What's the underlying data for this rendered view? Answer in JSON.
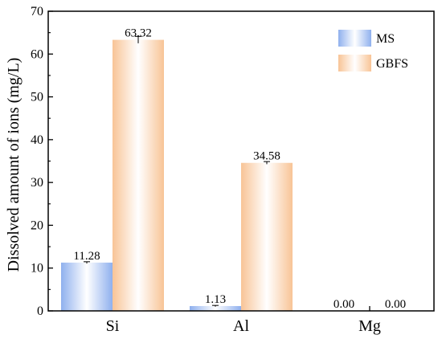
{
  "chart_data": {
    "type": "bar",
    "categories": [
      "Si",
      "Al",
      "Mg"
    ],
    "series": [
      {
        "name": "MS",
        "values": [
          11.28,
          1.13,
          0.0
        ],
        "labels": [
          "11.28",
          "1.13",
          "0.00"
        ],
        "errors": [
          0.2,
          0.15,
          0
        ],
        "color": "#a9c4f2"
      },
      {
        "name": "GBFS",
        "values": [
          63.32,
          34.58,
          0.0
        ],
        "labels": [
          "63.32",
          "34.58",
          "0.00"
        ],
        "errors": [
          0.8,
          0.3,
          0
        ],
        "color": "#f9c9a0"
      }
    ],
    "ylabel": "Dissolved amount of ions (mg/L)",
    "ylim": [
      0,
      70
    ],
    "yticks": [
      "0",
      "10",
      "20",
      "30",
      "40",
      "50",
      "60",
      "70"
    ],
    "legend_position": "top-right",
    "grid": false
  }
}
